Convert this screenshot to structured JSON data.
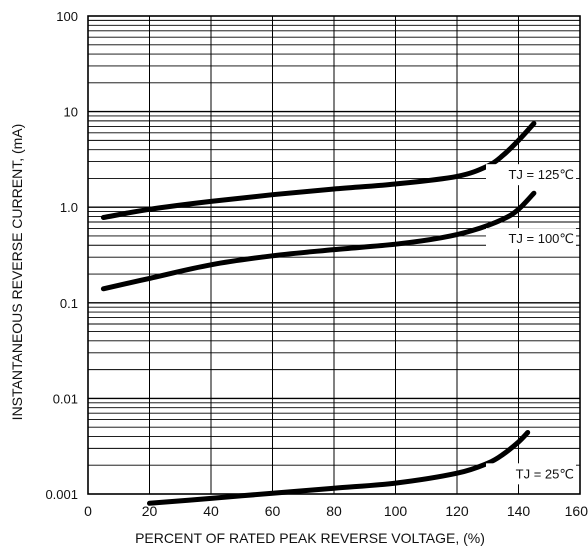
{
  "chart_data": {
    "type": "line",
    "title": "",
    "xlabel": "PERCENT OF RATED PEAK REVERSE VOLTAGE, (%)",
    "ylabel": "INSTANTANEOUS REVERSE CURRENT, (mA)",
    "x_scale": "linear",
    "y_scale": "log",
    "xlim": [
      0,
      160
    ],
    "ylim": [
      0.001,
      100
    ],
    "x_ticks": [
      {
        "value": 0,
        "label": "0"
      },
      {
        "value": 20,
        "label": "20"
      },
      {
        "value": 40,
        "label": "40"
      },
      {
        "value": 60,
        "label": "60"
      },
      {
        "value": 80,
        "label": "80"
      },
      {
        "value": 100,
        "label": "100"
      },
      {
        "value": 120,
        "label": "120"
      },
      {
        "value": 140,
        "label": "140"
      },
      {
        "value": 160,
        "label": "160"
      }
    ],
    "y_ticks": [
      {
        "value": 0.001,
        "label": "0.001"
      },
      {
        "value": 0.01,
        "label": "0.01"
      },
      {
        "value": 0.1,
        "label": "0.1"
      },
      {
        "value": 1,
        "label": "1.0"
      },
      {
        "value": 10,
        "label": "10"
      },
      {
        "value": 100,
        "label": "100"
      }
    ],
    "grid": true,
    "series": [
      {
        "name": "TJ = 125℃",
        "x": [
          5,
          20,
          40,
          60,
          80,
          100,
          120,
          130,
          135,
          140,
          145
        ],
        "y": [
          0.78,
          0.95,
          1.15,
          1.35,
          1.55,
          1.75,
          2.1,
          2.7,
          3.5,
          5.0,
          7.5
        ]
      },
      {
        "name": "TJ = 100℃",
        "x": [
          5,
          20,
          40,
          60,
          80,
          100,
          115,
          125,
          135,
          140,
          145
        ],
        "y": [
          0.14,
          0.18,
          0.25,
          0.31,
          0.36,
          0.41,
          0.48,
          0.57,
          0.75,
          0.95,
          1.4
        ]
      },
      {
        "name": "TJ = 25℃",
        "x": [
          20,
          40,
          60,
          80,
          100,
          120,
          130,
          135,
          140,
          143
        ],
        "y": [
          0.0008,
          0.0009,
          0.00102,
          0.00115,
          0.0013,
          0.00165,
          0.0021,
          0.0026,
          0.0035,
          0.0044
        ]
      }
    ]
  }
}
